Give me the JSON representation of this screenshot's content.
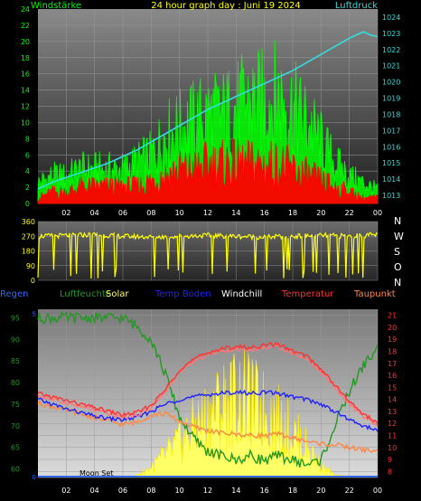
{
  "chart_data": [
    {
      "type": "line",
      "title": "24 hour graph day : Juni 19 2024",
      "left_axis_label": "Windstärke",
      "right_axis_label": "Luftdruck",
      "colors": {
        "gust": "#00ff00",
        "wind": "#ff0000",
        "pressure": "#33dddd",
        "axis_left": "#00ff00",
        "axis_right": "#33dddd",
        "title": "#ffff00"
      },
      "ylim_left": [
        0,
        24
      ],
      "yticks_left": [
        0,
        2,
        4,
        6,
        8,
        10,
        12,
        14,
        16,
        18,
        20,
        22,
        24
      ],
      "ylim_right": [
        1012.5,
        1024.5
      ],
      "yticks_right": [
        1013,
        1014,
        1015,
        1016,
        1017,
        1018,
        1019,
        1020,
        1021,
        1022,
        1023,
        1024
      ],
      "xlim": [
        0,
        24
      ],
      "xticks": [
        "02",
        "04",
        "06",
        "08",
        "10",
        "12",
        "14",
        "16",
        "18",
        "20",
        "22",
        "00"
      ],
      "series": [
        {
          "key": "gust",
          "x": [
            0,
            1,
            2,
            3,
            4,
            5,
            6,
            7,
            8,
            9,
            10,
            11,
            12,
            13,
            14,
            15,
            16,
            17,
            18,
            19,
            20,
            21,
            22,
            23,
            24
          ],
          "values": [
            3,
            4,
            4,
            5,
            5,
            5,
            5,
            6,
            7,
            10,
            11,
            12,
            13,
            13,
            14,
            15,
            15,
            16,
            14,
            12,
            9,
            6,
            4,
            3,
            2
          ]
        },
        {
          "key": "wind",
          "x": [
            0,
            1,
            2,
            3,
            4,
            5,
            6,
            7,
            8,
            9,
            10,
            11,
            12,
            13,
            14,
            15,
            16,
            17,
            18,
            19,
            20,
            21,
            22,
            23,
            24
          ],
          "values": [
            1,
            2,
            2,
            3,
            3,
            3,
            3,
            3,
            4,
            5,
            6,
            6,
            7,
            7,
            7,
            7,
            7,
            7,
            6,
            5,
            4,
            3,
            2,
            1,
            1
          ]
        },
        {
          "key": "pressure",
          "x": [
            0,
            1,
            2,
            3,
            4,
            5,
            6,
            7,
            8,
            9,
            10,
            11,
            12,
            13,
            14,
            15,
            16,
            17,
            18,
            19,
            20,
            21,
            22,
            23,
            23.5,
            24
          ],
          "values": [
            1013.4,
            1013.8,
            1014.1,
            1014.4,
            1014.7,
            1015.0,
            1015.4,
            1015.8,
            1016.3,
            1016.8,
            1017.3,
            1017.8,
            1018.3,
            1018.7,
            1019.1,
            1019.5,
            1019.9,
            1020.3,
            1020.7,
            1021.2,
            1021.7,
            1022.2,
            1022.7,
            1023.1,
            1022.9,
            1022.8
          ]
        }
      ]
    },
    {
      "type": "scatter",
      "title": "",
      "yticks": [
        0,
        90,
        180,
        270,
        360
      ],
      "ylim": [
        0,
        360
      ],
      "xticks": [
        "02",
        "04",
        "06",
        "08",
        "10",
        "12",
        "14",
        "16",
        "18",
        "20",
        "22",
        "00"
      ],
      "compass_labels": [
        "N",
        "W",
        "S",
        "O",
        "N"
      ],
      "colors": {
        "direction": "#ffff00",
        "axis": "#ffff00",
        "compass": "#ffffff"
      },
      "series": [
        {
          "key": "direction",
          "x": [
            0,
            2,
            4,
            6,
            8,
            10,
            12,
            14,
            16,
            18,
            20,
            22,
            24
          ],
          "values": [
            270,
            275,
            280,
            270,
            265,
            270,
            275,
            270,
            265,
            270,
            275,
            270,
            280
          ]
        }
      ]
    },
    {
      "type": "line",
      "title": "",
      "legend": [
        {
          "name": "Regen",
          "color": "#3366ff"
        },
        {
          "name": "Luftfeuchte",
          "color": "#229922"
        },
        {
          "name": "Solar",
          "color": "#ffff66"
        },
        {
          "name": "Temp Boden",
          "color": "#2222ff"
        },
        {
          "name": "Windchill",
          "color": "#ffffff"
        },
        {
          "name": "Temperatur",
          "color": "#ff3333"
        },
        {
          "name": "Taupunkt",
          "color": "#ff8844"
        }
      ],
      "left_axis_a": {
        "ticks": [
          0,
          5
        ],
        "color": "#3366ff",
        "range": [
          0,
          5
        ]
      },
      "left_axis_b": {
        "ticks": [
          60,
          65,
          70,
          75,
          80,
          85,
          90,
          95
        ],
        "color": "#229922",
        "range": [
          58,
          97
        ]
      },
      "right_axis": {
        "ticks": [
          8,
          9,
          10,
          11,
          12,
          13,
          14,
          15,
          16,
          17,
          18,
          19,
          20,
          21
        ],
        "color": "#ff3333",
        "range": [
          7.5,
          21.5
        ]
      },
      "xticks": [
        "02",
        "04",
        "06",
        "08",
        "10",
        "12",
        "14",
        "16",
        "18",
        "20",
        "22",
        "00"
      ],
      "annotations": [
        "Moon Set"
      ],
      "series": [
        {
          "key": "humidity",
          "x": [
            0,
            1,
            2,
            3,
            4,
            5,
            6,
            6.5,
            7,
            8,
            9,
            10,
            11,
            12,
            13,
            14,
            15,
            16,
            17,
            18,
            19,
            20,
            21,
            22,
            23,
            24
          ],
          "values": [
            95,
            95,
            95,
            95,
            95,
            95,
            95,
            94,
            93,
            90,
            82,
            72,
            67,
            64,
            63,
            62,
            63,
            62,
            63,
            62,
            61,
            62,
            70,
            78,
            84,
            88
          ]
        },
        {
          "key": "temperatur",
          "x": [
            0,
            1,
            2,
            3,
            4,
            5,
            6,
            7,
            8,
            9,
            10,
            11,
            12,
            13,
            14,
            15,
            16,
            17,
            18,
            19,
            20,
            21,
            22,
            23,
            24
          ],
          "values": [
            14.5,
            14.2,
            13.9,
            13.6,
            13.3,
            13.0,
            12.7,
            12.9,
            13.5,
            14.8,
            16.5,
            17.3,
            17.9,
            18.2,
            18.4,
            18.3,
            18.5,
            18.6,
            18.0,
            17.6,
            16.5,
            15.2,
            13.8,
            12.8,
            12.0
          ]
        },
        {
          "key": "windchill",
          "x": [
            0,
            1,
            2,
            3,
            4,
            5,
            6,
            7,
            8,
            9,
            10,
            11,
            12,
            13,
            14,
            15,
            16,
            17,
            18,
            19,
            20,
            21,
            22,
            23,
            24
          ],
          "values": [
            14.3,
            14.0,
            13.7,
            13.4,
            13.1,
            12.8,
            12.5,
            12.7,
            13.3,
            14.6,
            16.3,
            17.1,
            17.7,
            18.0,
            18.2,
            18.1,
            18.3,
            18.4,
            17.8,
            17.4,
            16.3,
            15.0,
            13.6,
            12.6,
            11.8
          ]
        },
        {
          "key": "temp_boden",
          "x": [
            0,
            1,
            2,
            3,
            4,
            5,
            6,
            7,
            8,
            9,
            10,
            11,
            12,
            13,
            14,
            15,
            16,
            17,
            18,
            19,
            20,
            21,
            22,
            23,
            24
          ],
          "values": [
            14.0,
            13.6,
            13.2,
            12.9,
            12.6,
            12.4,
            12.3,
            12.5,
            13.0,
            13.6,
            14.0,
            14.2,
            14.4,
            14.5,
            14.6,
            14.5,
            14.6,
            14.5,
            14.2,
            14.0,
            13.6,
            13.0,
            12.3,
            11.8,
            11.4
          ]
        },
        {
          "key": "taupunkt",
          "x": [
            0,
            1,
            2,
            3,
            4,
            5,
            6,
            7,
            8,
            9,
            10,
            11,
            12,
            13,
            14,
            15,
            16,
            17,
            18,
            19,
            20,
            21,
            22,
            23,
            24
          ],
          "values": [
            13.7,
            13.4,
            13.1,
            12.8,
            12.5,
            12.2,
            11.9,
            12.1,
            12.7,
            12.8,
            12.2,
            11.7,
            11.4,
            11.2,
            11.1,
            11.0,
            11.0,
            11.1,
            10.8,
            10.5,
            10.3,
            10.2,
            10.0,
            9.8,
            9.7
          ]
        },
        {
          "key": "solar",
          "x": [
            0,
            6.5,
            7,
            7.5,
            8,
            8.5,
            9,
            9.5,
            10,
            10.5,
            11,
            11.5,
            12,
            12.5,
            13,
            13.5,
            14,
            14.5,
            15,
            15.5,
            16,
            16.5,
            17,
            17.5,
            18,
            18.5,
            19,
            19.5,
            20,
            20.5,
            21,
            24
          ],
          "values": [
            0,
            0,
            0.3,
            0.6,
            1.2,
            1.8,
            2.5,
            3.2,
            4.0,
            4.8,
            5.6,
            6.2,
            7.0,
            7.6,
            8.2,
            8.6,
            9.0,
            8.8,
            8.4,
            8.0,
            7.5,
            7.0,
            6.4,
            5.8,
            5.0,
            4.2,
            3.4,
            2.4,
            1.5,
            0.8,
            0.2,
            0
          ]
        },
        {
          "key": "regen",
          "x": [
            0,
            24
          ],
          "values": [
            0,
            0
          ]
        }
      ]
    }
  ]
}
